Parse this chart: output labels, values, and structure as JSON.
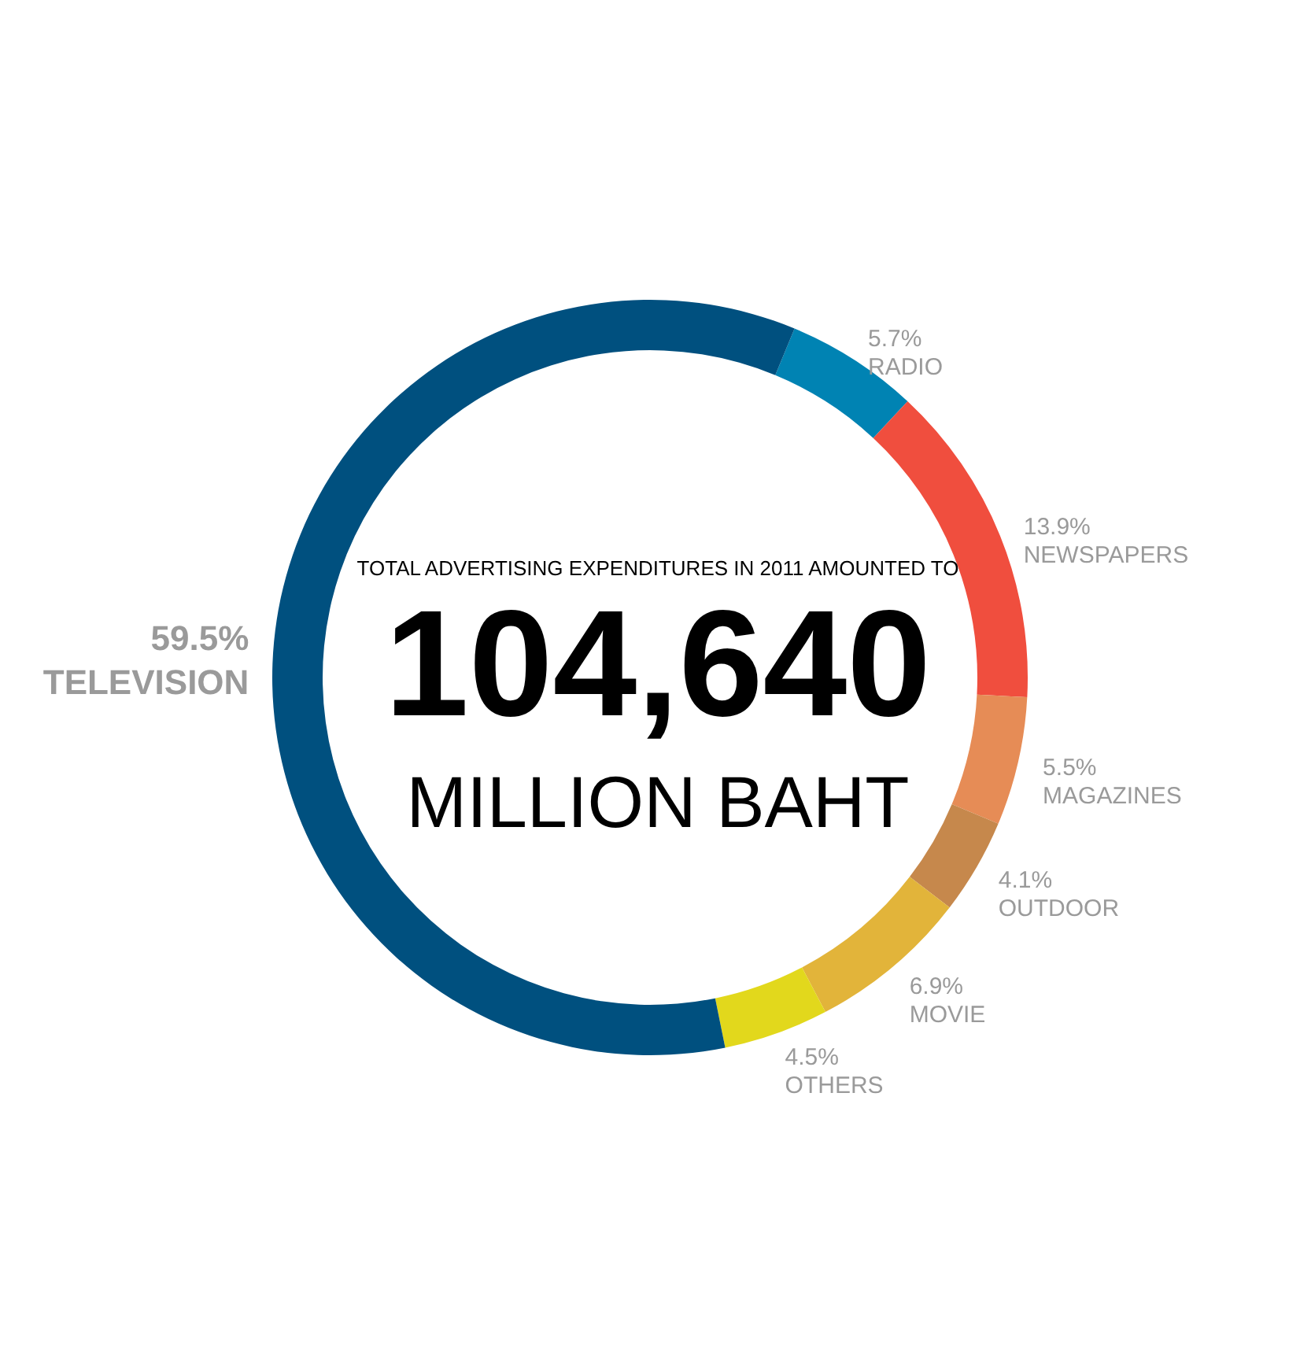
{
  "chart_data": {
    "type": "donut",
    "categories": [
      "RADIO",
      "NEWSPAPERS",
      "MAGAZINES",
      "OUTDOOR",
      "MOVIE",
      "OTHERS",
      "TELEVISION"
    ],
    "values": [
      5.7,
      13.9,
      5.5,
      4.1,
      6.9,
      4.5,
      59.5
    ],
    "value_labels": [
      "5.7%",
      "13.9%",
      "5.5%",
      "4.1%",
      "6.9%",
      "4.5%",
      "59.5%"
    ],
    "colors": [
      "#0083b3",
      "#f04e3e",
      "#e68c56",
      "#c6884c",
      "#e2b43a",
      "#e2d81c",
      "#00507f"
    ],
    "annotations": [
      "TOTAL ADVERTISING EXPENDITURES IN 2011 AMOUNTED TO",
      "104,640",
      "MILLION BAHT"
    ],
    "legend": false
  }
}
